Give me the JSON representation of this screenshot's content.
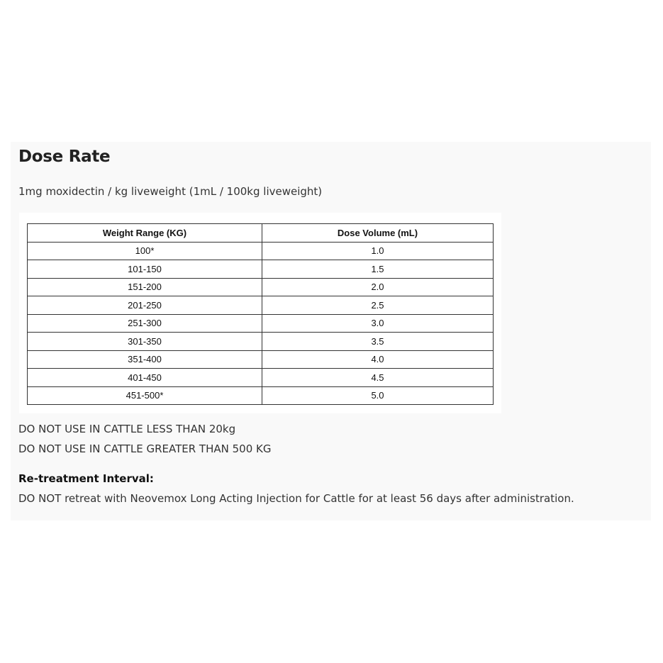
{
  "title": "Dose Rate",
  "subtitle": "1mg moxidectin / kg liveweight (1mL / 100kg liveweight)",
  "table": {
    "headers": [
      "Weight Range (KG)",
      "Dose Volume (mL)"
    ],
    "rows": [
      [
        "100*",
        "1.0"
      ],
      [
        "101-150",
        "1.5"
      ],
      [
        "151-200",
        "2.0"
      ],
      [
        "201-250",
        "2.5"
      ],
      [
        "251-300",
        "3.0"
      ],
      [
        "301-350",
        "3.5"
      ],
      [
        "351-400",
        "4.0"
      ],
      [
        "401-450",
        "4.5"
      ],
      [
        "451-500*",
        "5.0"
      ]
    ]
  },
  "warnings": [
    "DO NOT USE IN CATTLE LESS THAN 20kg",
    "DO NOT USE IN CATTLE GREATER THAN 500 KG"
  ],
  "retreatment": {
    "heading": "Re-treatment Interval:",
    "text": "DO NOT retreat with Neovemox Long Acting Injection for Cattle for at least 56 days after administration."
  }
}
